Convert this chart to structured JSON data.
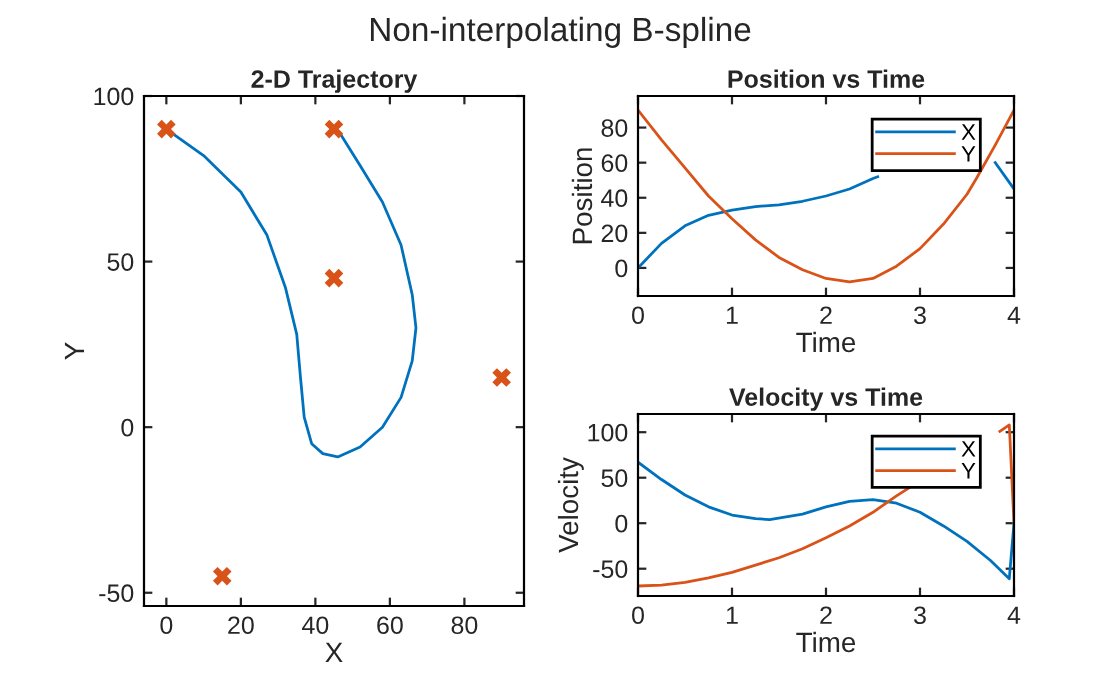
{
  "chart_data": [
    {
      "type": "line",
      "title": "2-D Trajectory",
      "annotations": [
        "Non-interpolating B-spline"
      ],
      "xlabel": "X",
      "ylabel": "Y",
      "xlim": [
        -6,
        96
      ],
      "ylim": [
        -54,
        100
      ],
      "xticks": [
        0,
        20,
        40,
        60,
        80
      ],
      "yticks": [
        -50,
        0,
        50,
        100
      ],
      "grid": false,
      "legend": false,
      "series": [
        {
          "type": "line",
          "color": "#0072bd",
          "marker": "none",
          "x": [
            0,
            10,
            20,
            27,
            32,
            35,
            36,
            37,
            39,
            42,
            46,
            52,
            58,
            63,
            66,
            67,
            66,
            63,
            58,
            52,
            47
          ],
          "values": [
            90,
            82,
            71,
            58,
            42,
            28,
            15,
            3,
            -5,
            -8,
            -9,
            -6,
            0,
            9,
            20,
            30,
            40,
            55,
            68,
            79,
            88
          ]
        },
        {
          "type": "scatter",
          "color": "#d95319",
          "marker": "cross",
          "x": [
            0,
            15,
            45,
            90,
            45
          ],
          "values": [
            90,
            -45,
            45,
            15,
            90
          ]
        }
      ]
    },
    {
      "type": "line",
      "title": "Position vs Time",
      "xlabel": "Time",
      "ylabel": "Position",
      "xlim": [
        0,
        4
      ],
      "ylim": [
        -16,
        98
      ],
      "xticks": [
        0,
        1,
        2,
        3,
        4
      ],
      "yticks": [
        0,
        20,
        40,
        60,
        80
      ],
      "grid": false,
      "legend": "top right",
      "series": [
        {
          "name": "X",
          "color": "#0072bd",
          "x": [
            0,
            0.25,
            0.5,
            0.75,
            1,
            1.25,
            1.5,
            1.75,
            2,
            2.25,
            2.5,
            2.55,
            3,
            3.25,
            3.5,
            3.8,
            4
          ],
          "values": [
            0,
            14,
            24,
            30,
            33,
            35,
            36,
            38,
            41,
            45,
            51,
            52,
            null,
            null,
            null,
            60,
            45
          ]
        },
        {
          "name": "Y",
          "color": "#d95319",
          "x": [
            0,
            0.25,
            0.5,
            0.75,
            1,
            1.25,
            1.5,
            1.75,
            2,
            2.25,
            2.5,
            2.75,
            3,
            3.25,
            3.5,
            3.6,
            3.8,
            4
          ],
          "values": [
            90,
            73,
            57,
            41,
            28,
            16,
            6,
            -1,
            -6,
            -8,
            -6,
            1,
            11,
            25,
            42,
            51,
            70,
            90
          ]
        }
      ]
    },
    {
      "type": "line",
      "title": "Velocity vs Time",
      "xlabel": "Time",
      "ylabel": "Velocity",
      "xlim": [
        0,
        4
      ],
      "ylim": [
        -80,
        120
      ],
      "xticks": [
        0,
        1,
        2,
        3,
        4
      ],
      "yticks": [
        -50,
        0,
        50,
        100
      ],
      "grid": false,
      "legend": "top right",
      "series": [
        {
          "name": "X",
          "color": "#0072bd",
          "x": [
            0,
            0.25,
            0.5,
            0.75,
            1,
            1.25,
            1.4,
            1.75,
            2,
            2.25,
            2.5,
            2.75,
            3,
            3.25,
            3.5,
            3.75,
            3.95,
            4
          ],
          "values": [
            67,
            48,
            31,
            18,
            9,
            5,
            4,
            10,
            18,
            24,
            26,
            22,
            12,
            -3,
            -20,
            -41,
            -61,
            0
          ]
        },
        {
          "name": "Y",
          "color": "#d95319",
          "x": [
            0,
            0.25,
            0.5,
            0.75,
            1,
            1.25,
            1.5,
            1.75,
            2,
            2.25,
            2.5,
            2.75,
            2.9,
            3.25,
            3.5,
            3.85,
            3.95,
            4
          ],
          "values": [
            -69,
            -68,
            -65,
            -60,
            -54,
            -46,
            -38,
            -28,
            -16,
            -3,
            12,
            30,
            40,
            null,
            null,
            101,
            108,
            0
          ]
        }
      ]
    }
  ]
}
